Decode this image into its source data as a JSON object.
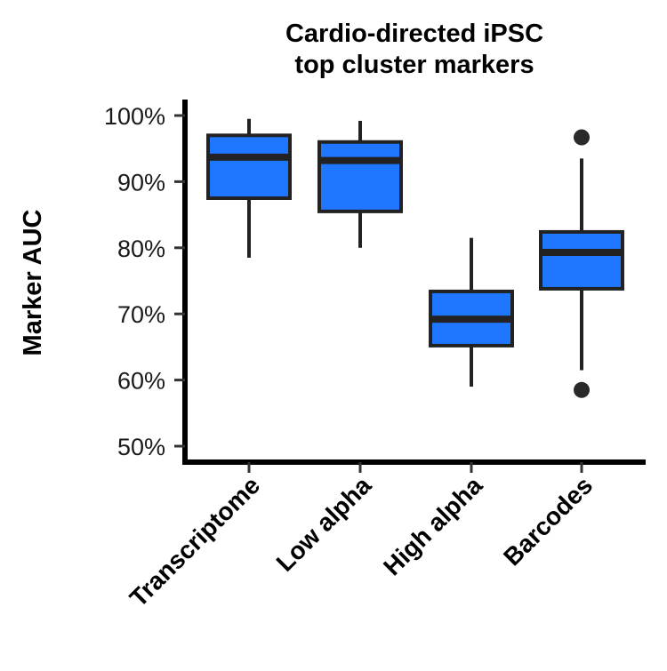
{
  "chart_data": {
    "type": "box",
    "title": [
      "Cardio-directed iPSC",
      "top cluster markers"
    ],
    "ylabel": "Marker AUC",
    "xlabel": "",
    "ylim": [
      48,
      102.5
    ],
    "yticks": [
      50,
      60,
      70,
      80,
      90,
      100
    ],
    "ytick_labels": [
      "50%",
      "60%",
      "70%",
      "80%",
      "90%",
      "100%"
    ],
    "categories": [
      "Transcriptome",
      "Low alpha",
      "High alpha",
      "Barcodes"
    ],
    "boxes": [
      {
        "name": "Transcriptome",
        "whisker_low": 78.5,
        "q1": 87.5,
        "median": 93.7,
        "q3": 97.0,
        "whisker_high": 99.5,
        "outliers": []
      },
      {
        "name": "Low alpha",
        "whisker_low": 80.0,
        "q1": 85.5,
        "median": 93.2,
        "q3": 96.0,
        "whisker_high": 99.2,
        "outliers": []
      },
      {
        "name": "High alpha",
        "whisker_low": 59.0,
        "q1": 65.2,
        "median": 69.2,
        "q3": 73.4,
        "whisker_high": 81.5,
        "outliers": []
      },
      {
        "name": "Barcodes",
        "whisker_low": 61.5,
        "q1": 73.8,
        "median": 79.3,
        "q3": 82.4,
        "whisker_high": 93.5,
        "outliers": [
          96.7,
          58.5
        ]
      }
    ],
    "colors": {
      "box_fill": "#1f77ff",
      "box_stroke": "#222222",
      "axis": "#000000"
    },
    "grid": false,
    "legend": "none"
  }
}
